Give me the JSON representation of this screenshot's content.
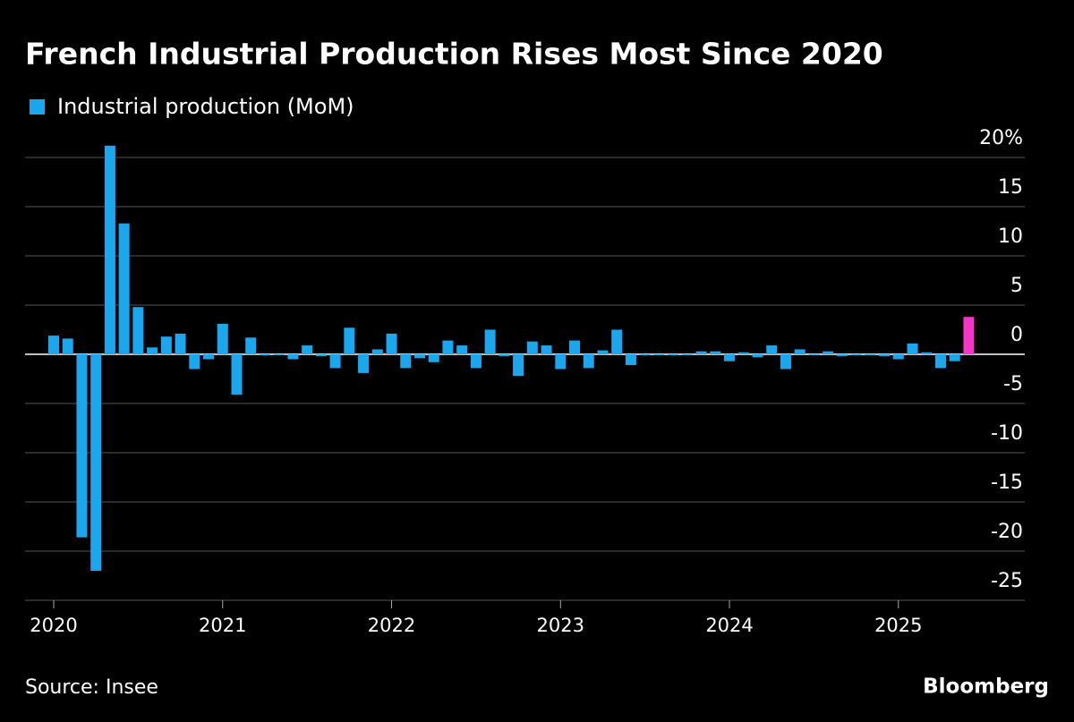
{
  "chart_data": {
    "type": "bar",
    "title": "French Industrial Production Rises Most Since 2020",
    "source": "Source: Insee",
    "brand": "Bloomberg",
    "categories": [
      "2020",
      null,
      null,
      null,
      null,
      null,
      null,
      null,
      null,
      null,
      null,
      null,
      "2021",
      null,
      null,
      null,
      null,
      null,
      null,
      null,
      null,
      null,
      null,
      null,
      "2022",
      null,
      null,
      null,
      null,
      null,
      null,
      null,
      null,
      null,
      null,
      null,
      "2023",
      null,
      null,
      null,
      null,
      null,
      null,
      null,
      null,
      null,
      null,
      null,
      "2024",
      null,
      null,
      null,
      null,
      null,
      null,
      null,
      null,
      null,
      null,
      null,
      "2025",
      null,
      null,
      null,
      null,
      null
    ],
    "series": [
      {
        "name": "Industrial production (MoM)",
        "color": "#1aa7ee",
        "values": [
          1.9,
          1.6,
          -18.6,
          -22.0,
          21.2,
          13.3,
          4.8,
          0.7,
          1.8,
          2.1,
          -1.5,
          -0.5,
          3.1,
          -4.1,
          1.7,
          -0.1,
          0,
          -0.5,
          0.9,
          -0.2,
          -1.4,
          2.7,
          -1.9,
          0.5,
          2.1,
          -1.4,
          -0.4,
          -0.8,
          1.4,
          0.9,
          -1.4,
          2.5,
          -0.2,
          -2.2,
          1.3,
          0.9,
          -1.5,
          1.4,
          -1.4,
          0.4,
          2.5,
          -1.1,
          -0.1,
          0,
          -0.1,
          0,
          0.3,
          0.3,
          -0.7,
          0.2,
          -0.3,
          0.9,
          -1.5,
          0.5,
          0,
          0.3,
          -0.2,
          -0.1,
          -0.1,
          -0.2,
          -0.5,
          1.1,
          0.2,
          -1.4,
          -0.7,
          3.8
        ],
        "highlight_color": "#f535c6",
        "highlight_last": true
      }
    ],
    "ylim": [
      -25,
      21.5
    ],
    "yticks": [
      {
        "value": 20,
        "label": "20%"
      },
      15,
      10,
      5,
      0,
      -5,
      -10,
      -15,
      -20,
      -25
    ],
    "grid": true
  }
}
